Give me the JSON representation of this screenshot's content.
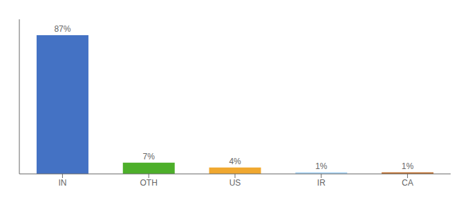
{
  "chart_data": {
    "type": "bar",
    "categories": [
      "IN",
      "OTH",
      "US",
      "IR",
      "CA"
    ],
    "values": [
      87,
      7,
      4,
      1,
      1
    ],
    "value_labels": [
      "87%",
      "7%",
      "4%",
      "1%",
      "1%"
    ],
    "colors": [
      "#4472c4",
      "#4daf2a",
      "#f0a830",
      "#a8d4f5",
      "#c07030"
    ],
    "ylim": [
      0,
      97
    ],
    "data_labels": true,
    "tick_labels": "x"
  }
}
